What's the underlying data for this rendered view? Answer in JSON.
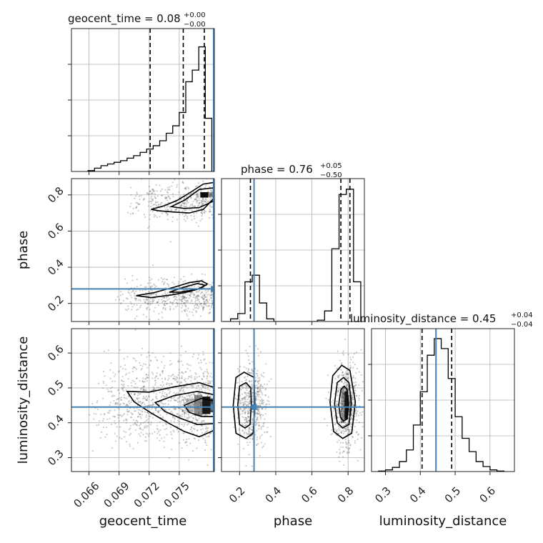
{
  "chart_data": {
    "type": "corner",
    "truth_color": "#4682b4",
    "parameters": [
      "geocent_time",
      "phase",
      "luminosity_distance"
    ],
    "ranges": {
      "geocent_time": [
        0.06425,
        0.0785
      ],
      "phase": [
        0.1,
        0.89
      ],
      "luminosity_distance": [
        0.26,
        0.67
      ]
    },
    "truths": {
      "geocent_time": 0.0785,
      "phase": 0.28,
      "luminosity_distance": 0.445
    },
    "ticks": {
      "geocent_time": [
        0.066,
        0.069,
        0.072,
        0.075
      ],
      "phase": [
        0.2,
        0.4,
        0.6,
        0.8
      ],
      "luminosity_distance": [
        0.3,
        0.4,
        0.5,
        0.6
      ]
    },
    "tick_labels": {
      "geocent_time": [
        "0.066",
        "0.069",
        "0.072",
        "0.075"
      ],
      "phase": [
        "0.2",
        "0.4",
        "0.6",
        "0.8"
      ],
      "luminosity_distance": [
        "0.3",
        "0.4",
        "0.5",
        "0.6"
      ]
    },
    "titles": {
      "geocent_time": {
        "prefix": "geocent_time = 0.08",
        "upper": "+0.00",
        "lower": "−0.00"
      },
      "phase": {
        "prefix": "phase = 0.76",
        "upper": "+0.05",
        "lower": "−0.50"
      },
      "luminosity_distance": {
        "prefix": "luminosity_distance = 0.45",
        "upper": "+0.04",
        "lower": "−0.04"
      }
    },
    "axis_labels": {
      "geocent_time": "geocent_time",
      "phase": "phase",
      "luminosity_distance": "luminosity_distance"
    },
    "quantiles": {
      "geocent_time": [
        0.0721,
        0.0754,
        0.0775
      ],
      "phase": [
        0.26,
        0.76,
        0.81
      ],
      "luminosity_distance": [
        0.405,
        0.445,
        0.49
      ]
    },
    "histograms": {
      "geocent_time": {
        "edges": [
          0.0659,
          0.06655,
          0.0672,
          0.06785,
          0.0685,
          0.06915,
          0.0698,
          0.07045,
          0.0711,
          0.07175,
          0.0724,
          0.07305,
          0.0737,
          0.07435,
          0.075,
          0.07565,
          0.0763,
          0.07695,
          0.0776,
          0.07825
        ],
        "counts": [
          0.5,
          2,
          3.5,
          4.5,
          5.5,
          6.5,
          8,
          9.5,
          11.5,
          13.5,
          15.5,
          18.5,
          23,
          27.5,
          35.5,
          54,
          61,
          75,
          32
        ],
        "max": 86
      },
      "phase": {
        "edges": [
          0.11,
          0.15,
          0.19,
          0.23,
          0.27,
          0.31,
          0.35,
          0.39,
          0.43,
          0.47,
          0.51,
          0.55,
          0.59,
          0.63,
          0.67,
          0.71,
          0.75,
          0.79,
          0.83,
          0.87
        ],
        "counts": [
          0,
          2,
          6,
          30,
          35,
          14,
          2,
          0,
          0,
          0,
          0,
          0,
          0,
          1,
          8,
          55,
          96,
          100,
          30
        ],
        "max": 108
      },
      "luminosity_distance": {
        "edges": [
          0.28,
          0.3,
          0.32,
          0.34,
          0.36,
          0.38,
          0.4,
          0.42,
          0.44,
          0.46,
          0.48,
          0.5,
          0.52,
          0.54,
          0.56,
          0.58,
          0.6,
          0.62,
          0.64
        ],
        "counts": [
          0.3,
          1,
          2.5,
          6,
          13,
          28,
          48,
          70,
          80,
          74,
          56,
          33,
          20,
          12,
          6,
          3,
          1,
          0.3
        ],
        "max": 86
      }
    },
    "scatter_seed": 7,
    "clusters": {
      "phase_vs_geocent_time": [
        {
          "x_from": 0.0698,
          "x_to": 0.0785,
          "y_mean": 0.76,
          "y_sd": 0.05,
          "n": 420
        },
        {
          "x_from": 0.0685,
          "x_to": 0.0785,
          "y_mean": 0.24,
          "y_sd": 0.05,
          "n": 520
        }
      ],
      "luminosity_distance_vs_geocent_time": [
        {
          "x_from": 0.0658,
          "x_to": 0.0785,
          "y_mean": 0.46,
          "y_sd": 0.06,
          "n": 1100
        }
      ],
      "luminosity_distance_vs_phase": [
        {
          "x_mean": 0.27,
          "x_sd": 0.04,
          "y_mean": 0.45,
          "y_sd": 0.06,
          "n": 550
        },
        {
          "x_mean": 0.79,
          "x_sd": 0.035,
          "y_mean": 0.45,
          "y_sd": 0.06,
          "n": 600
        }
      ]
    },
    "contours": {
      "phase_vs_geocent_time": [
        [
          [
            0.0722,
            0.72
          ],
          [
            0.0735,
            0.74
          ],
          [
            0.0748,
            0.77
          ],
          [
            0.076,
            0.81
          ],
          [
            0.0774,
            0.86
          ],
          [
            0.0786,
            0.87
          ],
          [
            0.0786,
            0.79
          ],
          [
            0.0774,
            0.72
          ],
          [
            0.076,
            0.7
          ],
          [
            0.0745,
            0.705
          ],
          [
            0.073,
            0.712
          ],
          [
            0.0722,
            0.72
          ]
        ],
        [
          [
            0.0742,
            0.735
          ],
          [
            0.0755,
            0.77
          ],
          [
            0.077,
            0.83
          ],
          [
            0.0786,
            0.84
          ],
          [
            0.0786,
            0.77
          ],
          [
            0.077,
            0.73
          ],
          [
            0.0755,
            0.725
          ],
          [
            0.0742,
            0.735
          ]
        ],
        [
          [
            0.0707,
            0.243
          ],
          [
            0.0725,
            0.26
          ],
          [
            0.0745,
            0.29
          ],
          [
            0.076,
            0.315
          ],
          [
            0.0772,
            0.325
          ],
          [
            0.0778,
            0.308
          ],
          [
            0.0772,
            0.285
          ],
          [
            0.076,
            0.265
          ],
          [
            0.0742,
            0.247
          ],
          [
            0.0722,
            0.232
          ],
          [
            0.0707,
            0.243
          ]
        ],
        [
          [
            0.074,
            0.262
          ],
          [
            0.0755,
            0.29
          ],
          [
            0.0768,
            0.31
          ],
          [
            0.0776,
            0.3
          ],
          [
            0.0768,
            0.278
          ],
          [
            0.075,
            0.262
          ],
          [
            0.074,
            0.262
          ]
        ]
      ],
      "luminosity_distance_vs_geocent_time": [
        [
          [
            0.0698,
            0.49
          ],
          [
            0.072,
            0.488
          ],
          [
            0.0745,
            0.503
          ],
          [
            0.077,
            0.515
          ],
          [
            0.0786,
            0.5
          ],
          [
            0.0786,
            0.38
          ],
          [
            0.077,
            0.36
          ],
          [
            0.0755,
            0.375
          ],
          [
            0.074,
            0.398
          ],
          [
            0.0722,
            0.428
          ],
          [
            0.0705,
            0.46
          ],
          [
            0.0698,
            0.49
          ]
        ],
        [
          [
            0.0726,
            0.458
          ],
          [
            0.0745,
            0.478
          ],
          [
            0.0768,
            0.49
          ],
          [
            0.0786,
            0.48
          ],
          [
            0.0786,
            0.398
          ],
          [
            0.0768,
            0.395
          ],
          [
            0.0752,
            0.412
          ],
          [
            0.0736,
            0.432
          ],
          [
            0.0726,
            0.458
          ]
        ],
        [
          [
            0.0755,
            0.45
          ],
          [
            0.0772,
            0.47
          ],
          [
            0.0786,
            0.462
          ],
          [
            0.0786,
            0.418
          ],
          [
            0.0772,
            0.418
          ],
          [
            0.076,
            0.43
          ],
          [
            0.0755,
            0.45
          ]
        ]
      ],
      "luminosity_distance_vs_phase": [
        [
          [
            0.165,
            0.45
          ],
          [
            0.18,
            0.53
          ],
          [
            0.225,
            0.545
          ],
          [
            0.28,
            0.53
          ],
          [
            0.285,
            0.45
          ],
          [
            0.275,
            0.37
          ],
          [
            0.235,
            0.355
          ],
          [
            0.18,
            0.37
          ],
          [
            0.165,
            0.45
          ]
        ],
        [
          [
            0.19,
            0.45
          ],
          [
            0.2,
            0.505
          ],
          [
            0.235,
            0.515
          ],
          [
            0.262,
            0.5
          ],
          [
            0.265,
            0.45
          ],
          [
            0.258,
            0.395
          ],
          [
            0.23,
            0.385
          ],
          [
            0.2,
            0.395
          ],
          [
            0.19,
            0.45
          ]
        ],
        [
          [
            0.7,
            0.46
          ],
          [
            0.715,
            0.535
          ],
          [
            0.765,
            0.565
          ],
          [
            0.81,
            0.55
          ],
          [
            0.84,
            0.46
          ],
          [
            0.82,
            0.37
          ],
          [
            0.77,
            0.355
          ],
          [
            0.72,
            0.375
          ],
          [
            0.7,
            0.46
          ]
        ],
        [
          [
            0.725,
            0.455
          ],
          [
            0.74,
            0.515
          ],
          [
            0.775,
            0.53
          ],
          [
            0.805,
            0.515
          ],
          [
            0.818,
            0.455
          ],
          [
            0.805,
            0.395
          ],
          [
            0.77,
            0.385
          ],
          [
            0.74,
            0.4
          ],
          [
            0.725,
            0.455
          ]
        ],
        [
          [
            0.748,
            0.452
          ],
          [
            0.76,
            0.495
          ],
          [
            0.778,
            0.505
          ],
          [
            0.795,
            0.495
          ],
          [
            0.802,
            0.452
          ],
          [
            0.792,
            0.41
          ],
          [
            0.775,
            0.405
          ],
          [
            0.758,
            0.415
          ],
          [
            0.748,
            0.452
          ]
        ]
      ]
    },
    "density_cells": {
      "luminosity_distance_vs_geocent_time": [
        [
          0.0757,
          0.47,
          0.0765,
          0.43,
          0.25
        ],
        [
          0.0765,
          0.48,
          0.0773,
          0.42,
          0.45
        ],
        [
          0.0773,
          0.475,
          0.0781,
          0.425,
          0.9
        ],
        [
          0.0781,
          0.47,
          0.0786,
          0.43,
          0.7
        ]
      ],
      "luminosity_distance_vs_phase": [
        [
          0.76,
          0.5,
          0.78,
          0.4,
          0.35
        ],
        [
          0.78,
          0.49,
          0.8,
          0.41,
          0.9
        ],
        [
          0.8,
          0.48,
          0.82,
          0.42,
          0.4
        ]
      ],
      "phase_vs_geocent_time": [
        [
          0.0771,
          0.815,
          0.0779,
          0.785,
          0.95
        ],
        [
          0.0779,
          0.815,
          0.0786,
          0.79,
          0.4
        ]
      ]
    }
  }
}
